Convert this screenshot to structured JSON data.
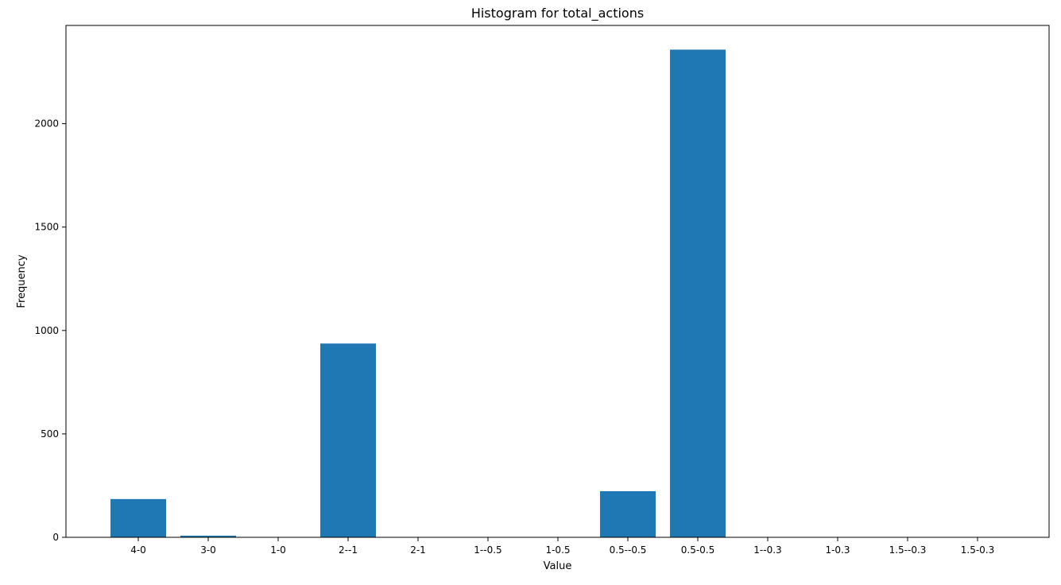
{
  "chart_data": {
    "type": "bar",
    "title": "Histogram for total_actions",
    "xlabel": "Value",
    "ylabel": "Frequency",
    "categories": [
      "4-0",
      "3-0",
      "1-0",
      "2--1",
      "2-1",
      "1--0.5",
      "1-0.5",
      "0.5--0.5",
      "0.5-0.5",
      "1--0.3",
      "1-0.3",
      "1.5--0.3",
      "1.5-0.3"
    ],
    "values": [
      185,
      8,
      0,
      937,
      0,
      0,
      0,
      223,
      2358,
      0,
      0,
      0,
      0
    ],
    "ylim": [
      0,
      2475
    ],
    "yticks": [
      0,
      500,
      1000,
      1500,
      2000
    ],
    "grid": false,
    "bar_color": "#1f77b4"
  }
}
